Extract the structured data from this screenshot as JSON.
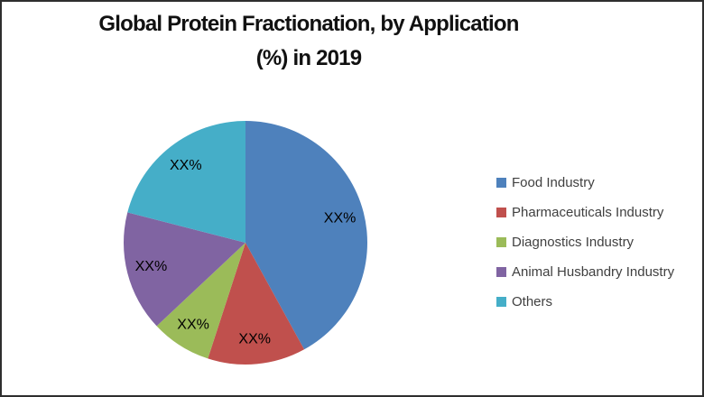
{
  "chart_data": {
    "type": "pie",
    "title_line1": "Global Protein Fractionation, by Application",
    "title_line2": "(%) in 2019",
    "legend_position": "right",
    "direction": "clockwise",
    "start_angle_deg": 0,
    "slices": [
      {
        "label": "Food Industry",
        "color": "#4E81BC",
        "data_label": "XX%",
        "value_pct_est": 42
      },
      {
        "label": "Pharmaceuticals Industry",
        "color": "#C0504D",
        "data_label": "XX%",
        "value_pct_est": 13
      },
      {
        "label": "Diagnostics Industry",
        "color": "#9BBB59",
        "data_label": "XX%",
        "value_pct_est": 8
      },
      {
        "label": "Animal Husbandry Industry",
        "color": "#8064A2",
        "data_label": "XX%",
        "value_pct_est": 16
      },
      {
        "label": "Others",
        "color": "#45AEC8",
        "data_label": "XX%",
        "value_pct_est": 21
      }
    ],
    "note": "Slice percentage labels are masked as XX% in the source image; value_pct_est values are estimated from the slice arc angles."
  }
}
